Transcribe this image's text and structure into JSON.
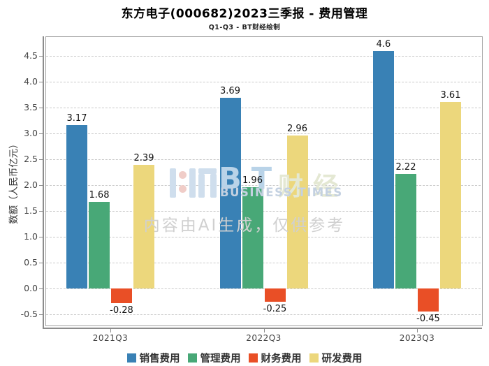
{
  "header": {
    "title": "东方电子(000682)2023三季报 - 费用管理",
    "subtitle": "Q1-Q3 - BT财经绘制"
  },
  "watermark": {
    "brand_short": "BT",
    "brand_cn": "财经",
    "brand_en": "BUSINESS TIMES",
    "ai_note": "内容由AI生成，仅供参考"
  },
  "chart_data": {
    "type": "bar",
    "title": "东方电子(000682)2023三季报 - 费用管理",
    "subtitle": "Q1-Q3 - BT财经绘制",
    "categories": [
      "2021Q3",
      "2022Q3",
      "2023Q3"
    ],
    "series": [
      {
        "name": "销售费用",
        "color": "#3981b5",
        "values": [
          3.17,
          3.69,
          4.6
        ],
        "labels": [
          "3.17",
          "3.69",
          "4.6"
        ]
      },
      {
        "name": "管理费用",
        "color": "#48a877",
        "values": [
          1.68,
          1.96,
          2.22
        ],
        "labels": [
          "1.68",
          "1.96",
          "2.22"
        ]
      },
      {
        "name": "财务费用",
        "color": "#e94f26",
        "values": [
          -0.28,
          -0.25,
          -0.45
        ],
        "labels": [
          "-0.28",
          "-0.25",
          "-0.45"
        ]
      },
      {
        "name": "研发费用",
        "color": "#ecd77c",
        "values": [
          2.39,
          2.96,
          3.61
        ],
        "labels": [
          "2.39",
          "2.96",
          "3.61"
        ]
      }
    ],
    "xlabel": "",
    "ylabel": "数额（人民币亿元）",
    "ylim": [
      -0.7,
      4.88
    ],
    "yticks": [
      -0.5,
      0.0,
      0.5,
      1.0,
      1.5,
      2.0,
      2.5,
      3.0,
      3.5,
      4.0,
      4.5
    ],
    "grid": "horizontal-dashed",
    "legend_position": "bottom",
    "bar_value_labels": true
  }
}
